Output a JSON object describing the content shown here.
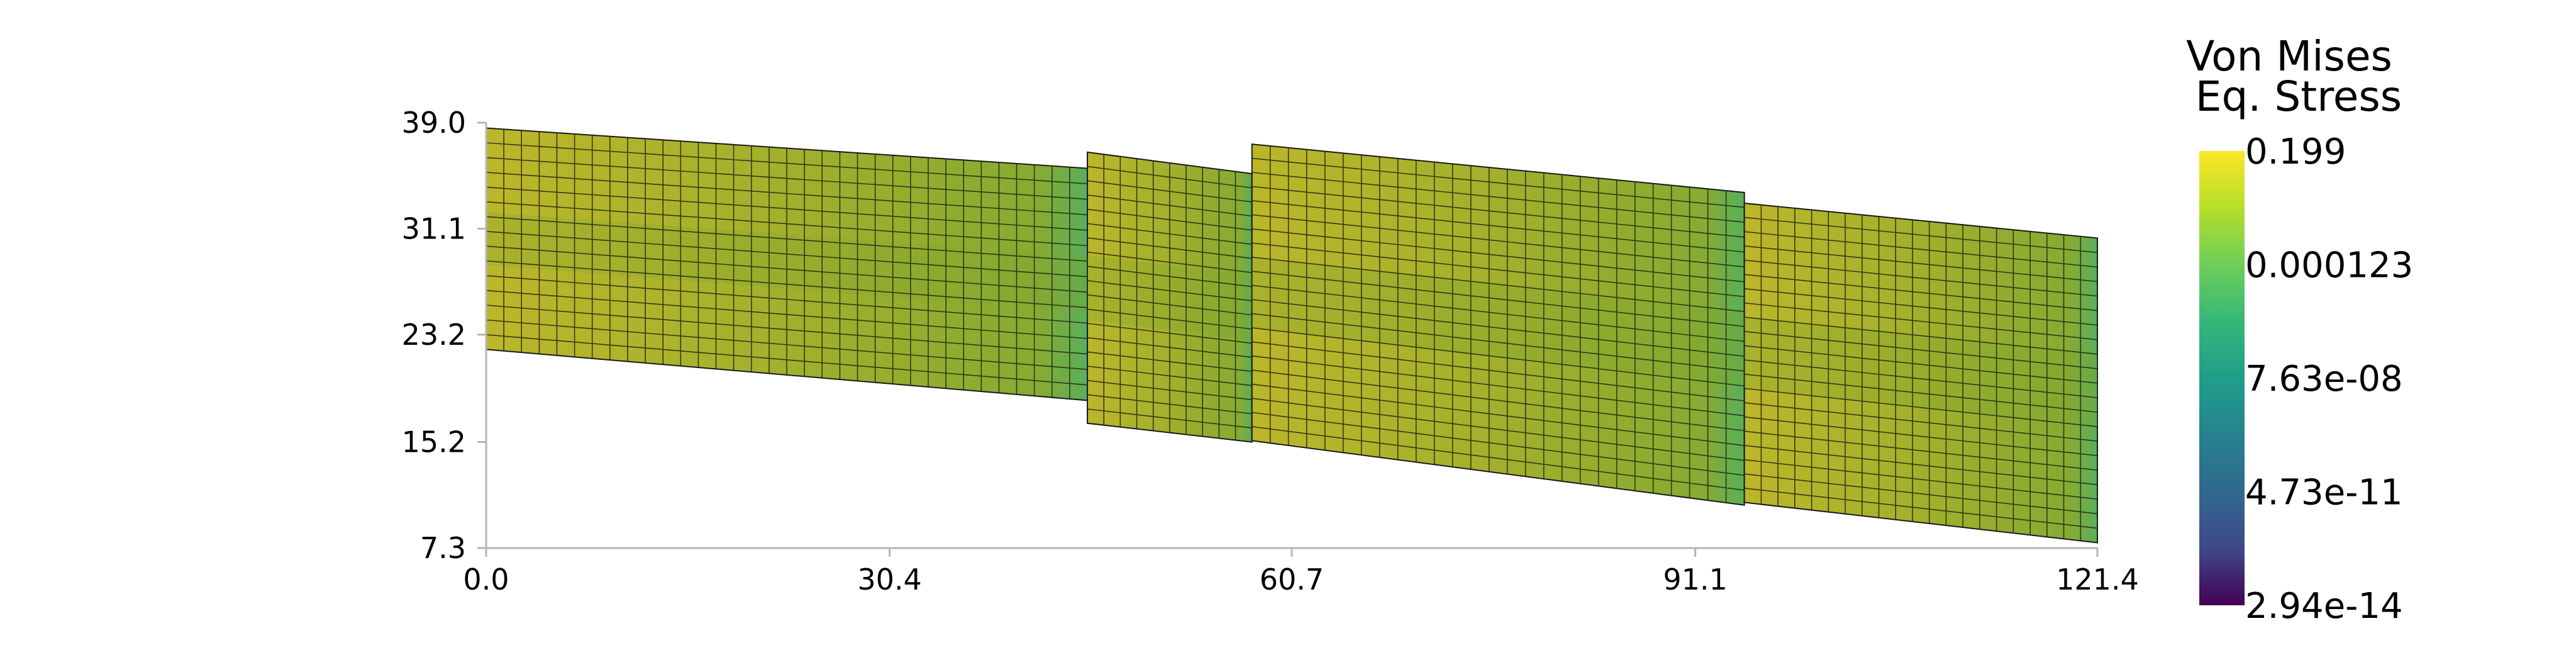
{
  "chart_data": {
    "type": "mesh",
    "x_ticks": [
      "0.0",
      "30.4",
      "60.7",
      "91.1",
      "121.4"
    ],
    "y_ticks": [
      "7.3",
      "15.2",
      "23.2",
      "31.1",
      "39.0"
    ],
    "xlim": [
      0.0,
      121.4
    ],
    "ylim": [
      7.3,
      39.0
    ],
    "grid": false,
    "colorbar": {
      "title_lines": [
        "Von Mises",
        "Eq. Stress"
      ],
      "tick_labels": [
        "0.199",
        "0.000123",
        "7.63e-08",
        "4.73e-11",
        "2.94e-14"
      ],
      "scale": "log",
      "colormap": "viridis",
      "placement": "right"
    },
    "mesh_segments": [
      {
        "x": [
          0.0,
          45.3
        ],
        "top": [
          38.6,
          35.6
        ],
        "bottom": [
          22.1,
          18.3
        ],
        "cols": 34,
        "rows": 15
      },
      {
        "x": [
          45.3,
          57.7
        ],
        "top": [
          36.8,
          35.2
        ],
        "bottom": [
          16.6,
          15.2
        ],
        "cols": 10,
        "rows": 19
      },
      {
        "x": [
          57.7,
          94.8
        ],
        "top": [
          37.4,
          33.8
        ],
        "bottom": [
          15.3,
          10.5
        ],
        "cols": 27,
        "rows": 21
      },
      {
        "x": [
          94.8,
          121.4
        ],
        "top": [
          33.0,
          30.4
        ],
        "bottom": [
          10.7,
          7.7
        ],
        "cols": 21,
        "rows": 21
      }
    ],
    "field_colors": {
      "high": "#b8b82a",
      "mid": "#8faa2e",
      "low": "#4aac6a"
    }
  }
}
